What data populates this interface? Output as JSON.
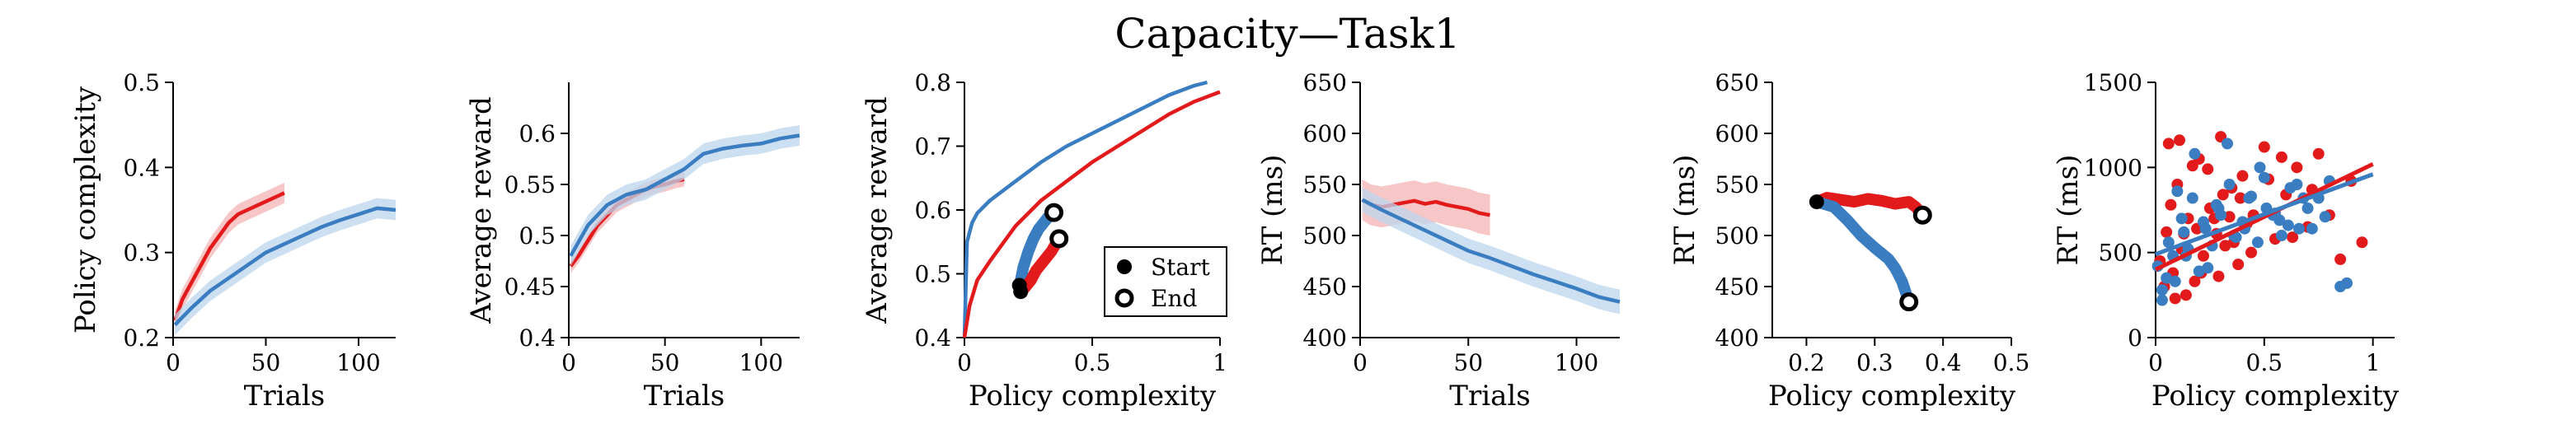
{
  "figure": {
    "title": "Capacity—Task1"
  },
  "colors": {
    "red": "#e31a1c",
    "blue": "#3a7dc1",
    "red_band": "#f4b3b4",
    "blue_band": "#bcd6ee"
  },
  "chart_data": [
    {
      "type": "line",
      "xlabel": "Trials",
      "ylabel": "Policy complexity",
      "xlim": [
        0,
        120
      ],
      "ylim": [
        0.2,
        0.5
      ],
      "xticks": [
        0,
        50,
        100
      ],
      "yticks": [
        0.2,
        0.3,
        0.4,
        0.5
      ],
      "xtick_labels": [
        "0",
        "50",
        "100"
      ],
      "ytick_labels": [
        "0.2",
        "0.3",
        "0.4",
        "0.5"
      ],
      "series": [
        {
          "color": "red",
          "band": 0.012,
          "x": [
            1,
            5,
            10,
            15,
            20,
            25,
            30,
            35,
            40,
            45,
            50,
            55,
            60
          ],
          "y": [
            0.22,
            0.245,
            0.265,
            0.285,
            0.305,
            0.32,
            0.335,
            0.345,
            0.35,
            0.355,
            0.36,
            0.365,
            0.37
          ]
        },
        {
          "color": "blue",
          "band": 0.012,
          "x": [
            1,
            10,
            20,
            30,
            40,
            50,
            60,
            70,
            80,
            90,
            100,
            110,
            120
          ],
          "y": [
            0.215,
            0.235,
            0.255,
            0.27,
            0.285,
            0.3,
            0.31,
            0.32,
            0.33,
            0.338,
            0.345,
            0.352,
            0.35
          ]
        }
      ]
    },
    {
      "type": "line",
      "xlabel": "Trials",
      "ylabel": "Average reward",
      "xlim": [
        0,
        120
      ],
      "ylim": [
        0.4,
        0.65
      ],
      "xticks": [
        0,
        50,
        100
      ],
      "yticks": [
        0.4,
        0.45,
        0.5,
        0.55,
        0.6
      ],
      "xtick_labels": [
        "0",
        "50",
        "100"
      ],
      "ytick_labels": [
        "0.4",
        "0.45",
        "0.5",
        "0.55",
        "0.6"
      ],
      "series": [
        {
          "color": "red",
          "band": 0.007,
          "x": [
            1,
            5,
            10,
            15,
            20,
            25,
            30,
            35,
            40,
            45,
            50,
            55,
            60
          ],
          "y": [
            0.47,
            0.48,
            0.495,
            0.51,
            0.52,
            0.53,
            0.535,
            0.54,
            0.545,
            0.548,
            0.55,
            0.553,
            0.555
          ]
        },
        {
          "color": "blue",
          "band": 0.01,
          "x": [
            1,
            10,
            20,
            30,
            40,
            50,
            60,
            70,
            80,
            90,
            100,
            110,
            120
          ],
          "y": [
            0.48,
            0.51,
            0.53,
            0.54,
            0.545,
            0.555,
            0.565,
            0.58,
            0.585,
            0.588,
            0.59,
            0.595,
            0.598
          ]
        }
      ]
    },
    {
      "type": "line",
      "xlabel": "Policy complexity",
      "ylabel": "Average reward",
      "xlim": [
        0,
        1
      ],
      "ylim": [
        0.4,
        0.8
      ],
      "xticks": [
        0,
        0.5,
        1
      ],
      "yticks": [
        0.4,
        0.5,
        0.6,
        0.7,
        0.8
      ],
      "xtick_labels": [
        "0",
        "0.5",
        "1"
      ],
      "ytick_labels": [
        "0.4",
        "0.5",
        "0.6",
        "0.7",
        "0.8"
      ],
      "series": [
        {
          "color": "blue",
          "role": "curve",
          "x": [
            0,
            0.01,
            0.03,
            0.05,
            0.1,
            0.2,
            0.3,
            0.4,
            0.5,
            0.6,
            0.7,
            0.8,
            0.9,
            0.95
          ],
          "y": [
            0.4,
            0.55,
            0.58,
            0.595,
            0.615,
            0.645,
            0.675,
            0.7,
            0.72,
            0.74,
            0.76,
            0.78,
            0.795,
            0.8
          ]
        },
        {
          "color": "red",
          "role": "curve",
          "x": [
            0,
            0.02,
            0.05,
            0.1,
            0.2,
            0.3,
            0.4,
            0.5,
            0.6,
            0.7,
            0.8,
            0.9,
            1.0
          ],
          "y": [
            0.4,
            0.45,
            0.49,
            0.52,
            0.575,
            0.615,
            0.645,
            0.675,
            0.7,
            0.725,
            0.75,
            0.77,
            0.785
          ]
        },
        {
          "color": "blue",
          "role": "trajectory",
          "x": [
            0.215,
            0.23,
            0.25,
            0.27,
            0.29,
            0.31,
            0.33,
            0.345,
            0.35
          ],
          "y": [
            0.48,
            0.51,
            0.535,
            0.555,
            0.57,
            0.58,
            0.59,
            0.595,
            0.598
          ]
        },
        {
          "color": "red",
          "role": "trajectory",
          "x": [
            0.22,
            0.24,
            0.26,
            0.28,
            0.3,
            0.32,
            0.34,
            0.355,
            0.365,
            0.37
          ],
          "y": [
            0.47,
            0.48,
            0.49,
            0.505,
            0.515,
            0.525,
            0.535,
            0.545,
            0.55,
            0.555
          ]
        }
      ],
      "markers": [
        {
          "kind": "start",
          "x": 0.215,
          "y": 0.482
        },
        {
          "kind": "start",
          "x": 0.22,
          "y": 0.472
        },
        {
          "kind": "end",
          "x": 0.35,
          "y": 0.596
        },
        {
          "kind": "end",
          "x": 0.37,
          "y": 0.555
        }
      ],
      "legend": {
        "position": "lower-right",
        "entries": [
          {
            "kind": "start",
            "label": "Start"
          },
          {
            "kind": "end",
            "label": "End"
          }
        ]
      }
    },
    {
      "type": "line",
      "xlabel": "Trials",
      "ylabel": "RT (ms)",
      "xlim": [
        0,
        120
      ],
      "ylim": [
        400,
        650
      ],
      "xticks": [
        0,
        50,
        100
      ],
      "yticks": [
        400,
        450,
        500,
        550,
        600,
        650
      ],
      "xtick_labels": [
        "0",
        "50",
        "100"
      ],
      "ytick_labels": [
        "400",
        "450",
        "500",
        "550",
        "600",
        "650"
      ],
      "series": [
        {
          "color": "red",
          "band": 20,
          "x": [
            1,
            5,
            10,
            15,
            20,
            25,
            30,
            35,
            40,
            45,
            50,
            55,
            60
          ],
          "y": [
            535,
            530,
            528,
            530,
            532,
            534,
            531,
            533,
            530,
            528,
            526,
            522,
            520
          ]
        },
        {
          "color": "blue",
          "band": 12,
          "x": [
            1,
            10,
            20,
            30,
            40,
            50,
            60,
            70,
            80,
            90,
            100,
            110,
            120
          ],
          "y": [
            535,
            525,
            515,
            505,
            495,
            485,
            478,
            470,
            462,
            455,
            448,
            440,
            435
          ]
        }
      ]
    },
    {
      "type": "scatter",
      "xlabel": "Policy complexity",
      "ylabel": "RT (ms)",
      "xlim": [
        0.15,
        0.5
      ],
      "ylim": [
        400,
        650
      ],
      "xticks": [
        0.2,
        0.3,
        0.4,
        0.5
      ],
      "yticks": [
        400,
        450,
        500,
        550,
        600,
        650
      ],
      "xtick_labels": [
        "0.2",
        "0.3",
        "0.4",
        "0.5"
      ],
      "ytick_labels": [
        "400",
        "450",
        "500",
        "550",
        "600",
        "650"
      ],
      "series": [
        {
          "color": "red",
          "role": "trajectory",
          "x": [
            0.215,
            0.23,
            0.25,
            0.27,
            0.29,
            0.31,
            0.33,
            0.35,
            0.36,
            0.37
          ],
          "y": [
            533,
            537,
            535,
            533,
            536,
            534,
            531,
            533,
            528,
            520
          ]
        },
        {
          "color": "blue",
          "role": "trajectory",
          "x": [
            0.215,
            0.24,
            0.26,
            0.28,
            0.3,
            0.32,
            0.33,
            0.34,
            0.345,
            0.35
          ],
          "y": [
            533,
            528,
            515,
            500,
            488,
            477,
            468,
            455,
            445,
            435
          ]
        }
      ],
      "markers": [
        {
          "kind": "start",
          "x": 0.215,
          "y": 533
        },
        {
          "kind": "end",
          "x": 0.37,
          "y": 520
        },
        {
          "kind": "end",
          "x": 0.35,
          "y": 435
        }
      ]
    },
    {
      "type": "scatter",
      "xlabel": "Policy complexity",
      "ylabel": "RT (ms)",
      "xlim": [
        0,
        1.1
      ],
      "ylim": [
        0,
        1500
      ],
      "xticks": [
        0,
        0.5,
        1
      ],
      "yticks": [
        0,
        500,
        1000,
        1500
      ],
      "xtick_labels": [
        "0",
        "0.5",
        "1"
      ],
      "ytick_labels": [
        "0",
        "500",
        "1000",
        "1500"
      ],
      "series": [
        {
          "color": "red",
          "role": "points",
          "x": [
            0.02,
            0.05,
            0.08,
            0.1,
            0.12,
            0.15,
            0.18,
            0.2,
            0.22,
            0.25,
            0.28,
            0.3,
            0.32,
            0.35,
            0.38,
            0.4,
            0.42,
            0.45,
            0.5,
            0.55,
            0.6,
            0.65,
            0.7,
            0.75,
            0.8,
            0.85,
            0.9,
            0.95,
            0.04,
            0.07,
            0.11,
            0.14,
            0.19,
            0.24,
            0.29,
            0.34,
            0.39,
            0.44,
            0.52,
            0.58,
            0.63,
            0.72,
            0.06,
            0.09,
            0.13,
            0.17,
            0.21,
            0.27,
            0.31,
            0.36
          ],
          "y": [
            450,
            620,
            380,
            900,
            520,
            700,
            330,
            1050,
            480,
            760,
            610,
            1180,
            540,
            880,
            430,
            950,
            670,
            720,
            1120,
            580,
            840,
            1000,
            650,
            1080,
            720,
            460,
            920,
            560,
            300,
            780,
            1160,
            250,
            640,
            990,
            360,
            710,
            820,
            500,
            930,
            1060,
            590,
            870,
            1140,
            230,
            610,
            1010,
            380,
            700,
            840,
            560
          ]
        },
        {
          "color": "blue",
          "role": "points",
          "x": [
            0.01,
            0.03,
            0.06,
            0.09,
            0.12,
            0.14,
            0.17,
            0.2,
            0.23,
            0.26,
            0.29,
            0.33,
            0.36,
            0.4,
            0.43,
            0.47,
            0.5,
            0.54,
            0.58,
            0.62,
            0.66,
            0.7,
            0.75,
            0.8,
            0.85,
            0.03,
            0.08,
            0.13,
            0.18,
            0.24,
            0.3,
            0.37,
            0.44,
            0.51,
            0.57,
            0.65,
            0.72,
            0.78,
            0.05,
            0.1,
            0.15,
            0.22,
            0.28,
            0.34,
            0.41,
            0.48,
            0.55,
            0.61,
            0.68,
            0.88
          ],
          "y": [
            420,
            280,
            560,
            330,
            700,
            480,
            820,
            390,
            640,
            540,
            760,
            1140,
            600,
            680,
            820,
            560,
            940,
            720,
            600,
            880,
            640,
            760,
            820,
            920,
            300,
            220,
            480,
            620,
            1080,
            410,
            720,
            590,
            830,
            760,
            690,
            900,
            640,
            710,
            350,
            860,
            520,
            680,
            780,
            900,
            640,
            1000,
            730,
            660,
            820,
            320
          ]
        }
      ],
      "fits": [
        {
          "color": "red",
          "x": [
            0,
            1.0
          ],
          "y": [
            400,
            1020
          ]
        },
        {
          "color": "blue",
          "x": [
            0,
            1.0
          ],
          "y": [
            490,
            960
          ]
        }
      ]
    }
  ]
}
